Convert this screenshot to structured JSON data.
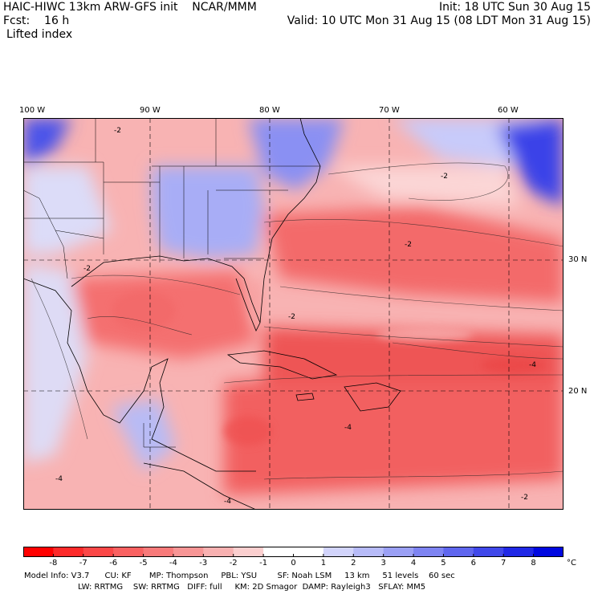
{
  "header": {
    "title_left": "HAIC-HIWC 13km ARW-GFS init    NCAR/MMM",
    "init": "Init: 18 UTC Sun 30 Aug 15",
    "fcst_label": "Fcst:    16 h",
    "valid": "Valid: 10 UTC Mon 31 Aug 15 (08 LDT Mon 31 Aug 15)",
    "field": "Lifted index"
  },
  "map": {
    "lon_labels": [
      "100 W",
      "90 W",
      "80 W",
      "70 W",
      "60 W"
    ],
    "lat_labels": [
      "30 N",
      "20 N"
    ],
    "contour_labels": [
      "-2",
      "-2",
      "-2",
      "-4",
      "-4",
      "-4",
      "-2",
      "-2",
      "-4",
      "-2"
    ]
  },
  "colorbar": {
    "ticks": [
      "-8",
      "-7",
      "-6",
      "-5",
      "-4",
      "-3",
      "-2",
      "-1",
      "0",
      "1",
      "2",
      "3",
      "4",
      "5",
      "6",
      "7",
      "8"
    ],
    "unit": "°C",
    "colors": [
      "#ff0000",
      "#fd2a2a",
      "#fb4747",
      "#f96161",
      "#f87a7a",
      "#f79595",
      "#f8b1b1",
      "#fbcfcf",
      "#ffffff",
      "#ffffff",
      "#d2d4fb",
      "#b7bbf8",
      "#9ba0f5",
      "#7e84f2",
      "#5f66ee",
      "#4048ea",
      "#2028e6",
      "#0008e0"
    ]
  },
  "footer": {
    "line1": "Model Info: V3.7      CU: KF       MP: Thompson     PBL: YSU        SF: Noah LSM     13 km     51 levels    60 sec",
    "line2": "LW: RRTMG    SW: RRTMG   DIFF: full     KM: 2D Smagor  DAMP: Rayleigh3   SFLAY: MM5"
  }
}
